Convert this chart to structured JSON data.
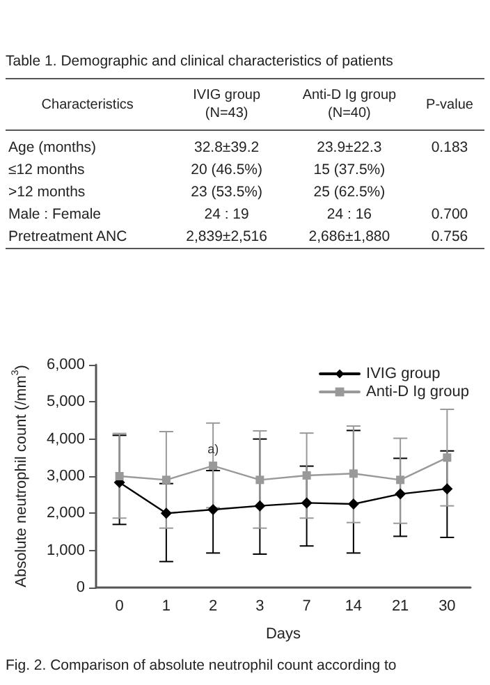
{
  "chart_data": [
    {
      "type": "other",
      "title": "Table 1. Demographic and clinical characteristics of patients",
      "annotations": [
        "Characteristics",
        "IVIG group\n(N=43)",
        "Anti-D Ig group\n(N=40)",
        "P-value",
        "Age (months)",
        "32.8±39.2",
        "23.9±22.3",
        "0.183",
        "≤12 months",
        "20 (46.5%)",
        "15 (37.5%)",
        null,
        ">12 months",
        "23 (53.5%)",
        "25 (62.5%)",
        null,
        "Male : Female",
        "24 : 19",
        "24 : 16",
        "0.700",
        "Pretreatment ANC",
        "2,839±2,516",
        "2,686±1,880",
        "0.756"
      ]
    },
    {
      "type": "line",
      "xlabel": "Days",
      "ylabel": "Absolute neutrophil count (/mm$^{3}$)",
      "categories": [
        "0",
        "1",
        "2",
        "3",
        "7",
        "14",
        "21",
        "30"
      ],
      "series": [
        {
          "name": "IVIG group",
          "color": "#000000",
          "marker": "diamond",
          "values": [
            2830,
            2000,
            2100,
            2200,
            2280,
            2250,
            2520,
            2660
          ],
          "errors": [
            [
              1700,
              4100
            ],
            [
              700,
              2800
            ],
            [
              930,
              3150
            ],
            [
              900,
              4000
            ],
            [
              1120,
              3270
            ],
            [
              930,
              4230
            ],
            [
              1380,
              3480
            ],
            [
              1350,
              3680
            ]
          ]
        },
        {
          "name": "Anti-D Ig group",
          "color": "#999999",
          "marker": "square",
          "values": [
            3000,
            2900,
            3280,
            2900,
            3020,
            3070,
            2900,
            3500
          ],
          "errors": [
            [
              1870,
              4150
            ],
            [
              1600,
              4200
            ],
            [
              2150,
              4430
            ],
            [
              1600,
              4220
            ],
            [
              1870,
              4160
            ],
            [
              1750,
              4350
            ],
            [
              1730,
              4020
            ],
            [
              2200,
              4800
            ]
          ]
        }
      ],
      "ylim": [
        0,
        6000
      ],
      "yticks": [
        0,
        {
          "value": 1000,
          "label": "1,000"
        },
        {
          "value": 2000,
          "label": "2,000"
        },
        {
          "value": 3000,
          "label": "3,000"
        },
        {
          "value": 4000,
          "label": "4,000"
        },
        {
          "value": 5000,
          "label": "5,000"
        },
        {
          "value": 6000,
          "label": "6,000"
        }
      ],
      "grid": false,
      "legend": "top right",
      "annotations": [
        {
          "text": "a)",
          "x": "2",
          "y": 3280
        },
        "Fig. 2. Comparison of absolute neutrophil count according to"
      ]
    }
  ]
}
